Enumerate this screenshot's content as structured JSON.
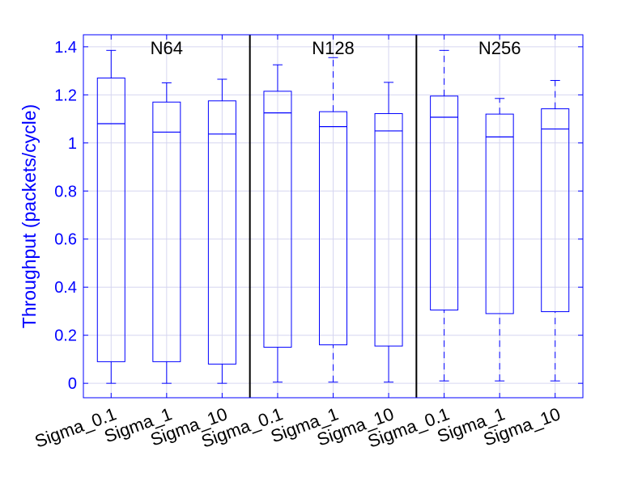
{
  "chart_data": {
    "type": "boxplot",
    "title": "",
    "ylabel": "Throughput (packets/cycle)",
    "xlabel": "",
    "ylim": [
      -0.06,
      1.45
    ],
    "yticks": [
      0,
      0.2,
      0.4,
      0.6,
      0.8,
      1,
      1.2,
      1.4
    ],
    "ytick_labels": [
      "0",
      "0.2",
      "0.4",
      "0.6",
      "0.8",
      "1",
      "1.2",
      "1.4"
    ],
    "grid": true,
    "colors": {
      "axis": "#0000ff",
      "box": "#0000ff",
      "grid": "#d6d6f0",
      "divider": "#000000",
      "text": "#000000"
    },
    "groups": [
      {
        "name": "N64",
        "boxes": [
          {
            "label": "Sigma_0.1",
            "min": 0.0,
            "q1": 0.09,
            "median": 1.08,
            "q3": 1.27,
            "max": 1.385,
            "whisker_style": "solid"
          },
          {
            "label": "Sigma_1",
            "min": 0.0,
            "q1": 0.09,
            "median": 1.045,
            "q3": 1.17,
            "max": 1.25,
            "whisker_style": "solid"
          },
          {
            "label": "Sigma_10",
            "min": 0.0,
            "q1": 0.08,
            "median": 1.037,
            "q3": 1.175,
            "max": 1.265,
            "whisker_style": "solid"
          }
        ]
      },
      {
        "name": "N128",
        "boxes": [
          {
            "label": "Sigma_0.1",
            "min": 0.005,
            "q1": 0.15,
            "median": 1.125,
            "q3": 1.215,
            "max": 1.325,
            "whisker_style": "solid"
          },
          {
            "label": "Sigma_1",
            "min": 0.005,
            "q1": 0.16,
            "median": 1.068,
            "q3": 1.13,
            "max": 1.355,
            "whisker_style": "dashed"
          },
          {
            "label": "Sigma_10",
            "min": 0.005,
            "q1": 0.155,
            "median": 1.05,
            "q3": 1.122,
            "max": 1.252,
            "whisker_style": "solid"
          }
        ]
      },
      {
        "name": "N256",
        "boxes": [
          {
            "label": "Sigma_0.1",
            "min": 0.01,
            "q1": 0.305,
            "median": 1.107,
            "q3": 1.195,
            "max": 1.385,
            "whisker_style": "dashed"
          },
          {
            "label": "Sigma_1",
            "min": 0.01,
            "q1": 0.29,
            "median": 1.025,
            "q3": 1.12,
            "max": 1.185,
            "whisker_style": "dashed"
          },
          {
            "label": "Sigma_10",
            "min": 0.01,
            "q1": 0.298,
            "median": 1.058,
            "q3": 1.142,
            "max": 1.26,
            "whisker_style": "dashed"
          }
        ]
      }
    ]
  }
}
